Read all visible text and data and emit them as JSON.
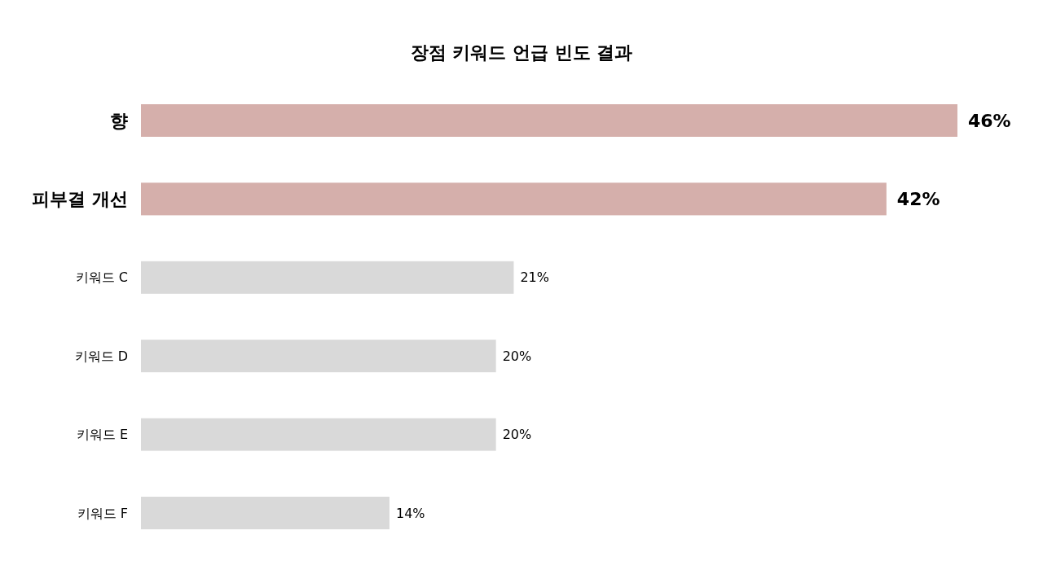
{
  "chart_data": {
    "type": "bar",
    "orientation": "horizontal",
    "title": "장점 키워드 언급 빈도 결과",
    "categories": [
      "향",
      "피부결 개선",
      "키워드 C",
      "키워드 D",
      "키워드 E",
      "키워드 F"
    ],
    "values": [
      46,
      42,
      21,
      20,
      20,
      14
    ],
    "value_labels": [
      "46%",
      "42%",
      "21%",
      "20%",
      "20%",
      "14%"
    ],
    "colors": [
      "#d5afab",
      "#d5afab",
      "#d9d9d9",
      "#d9d9d9",
      "#d9d9d9",
      "#d9d9d9"
    ]
  }
}
